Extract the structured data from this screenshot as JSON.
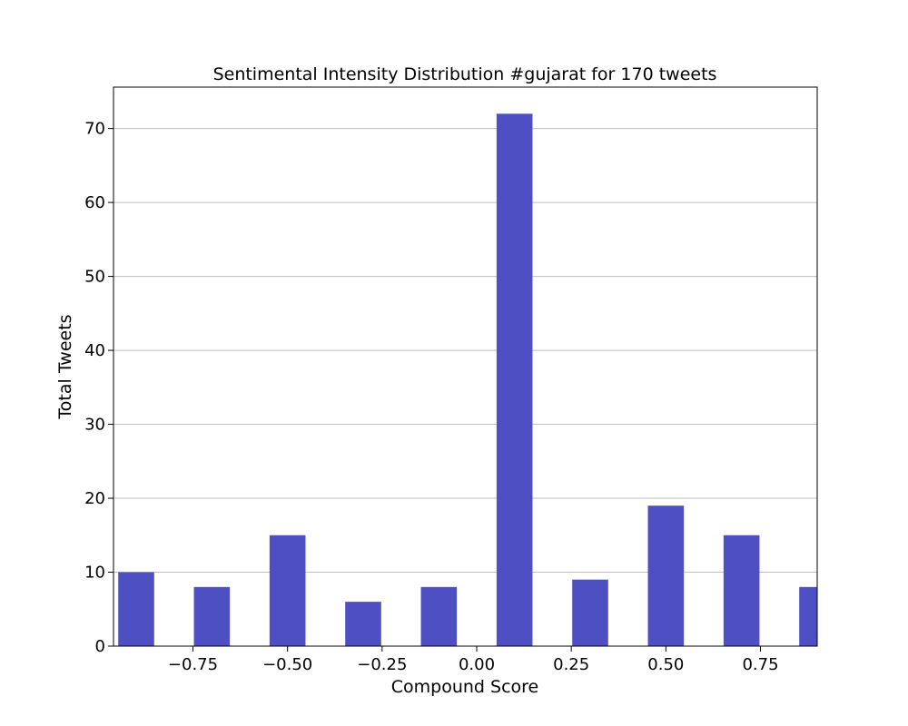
{
  "chart_data": {
    "type": "bar",
    "title": "Sentimental Intensity Distribution #gujarat for 170 tweets",
    "xlabel": "Compound Score",
    "ylabel": "Total Tweets",
    "xlim": [
      -0.96,
      0.9
    ],
    "ylim": [
      0,
      75.6
    ],
    "x_ticks": [
      -0.75,
      -0.5,
      -0.25,
      0.0,
      0.25,
      0.5,
      0.75
    ],
    "x_tick_labels": [
      "−0.75",
      "−0.50",
      "−0.25",
      "0.00",
      "0.25",
      "0.50",
      "0.75"
    ],
    "y_ticks": [
      0,
      10,
      20,
      30,
      40,
      50,
      60,
      70
    ],
    "y_tick_labels": [
      "0",
      "10",
      "20",
      "30",
      "40",
      "50",
      "60",
      "70"
    ],
    "grid": "horizontal",
    "bar_color": "#4f4fc4",
    "bar_width": 0.095,
    "x": [
      -0.9,
      -0.7,
      -0.5,
      -0.3,
      -0.1,
      0.1,
      0.3,
      0.5,
      0.7,
      0.9
    ],
    "values": [
      10,
      8,
      15,
      6,
      8,
      72,
      9,
      19,
      15,
      8
    ]
  }
}
